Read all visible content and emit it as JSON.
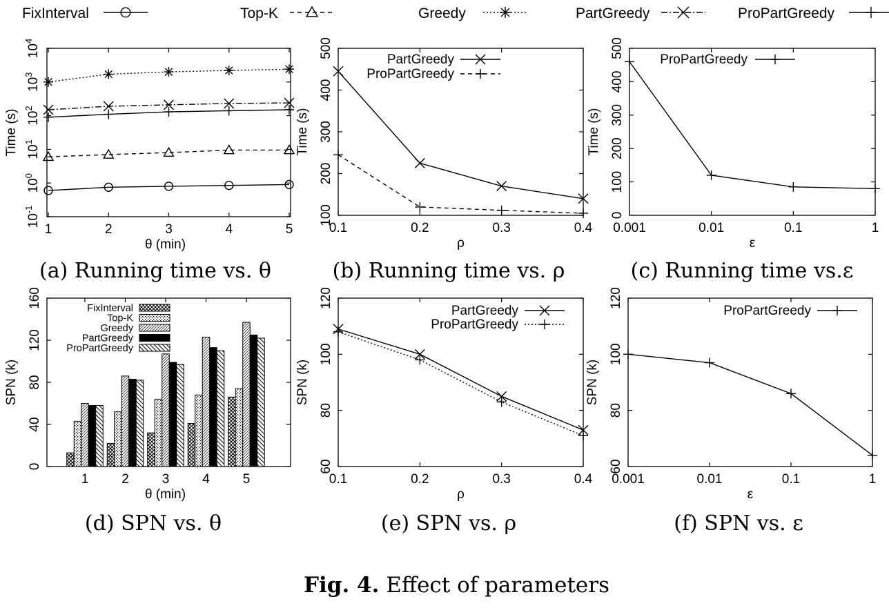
{
  "figure": {
    "caption_label": "Fig. 4.",
    "caption_text": "Effect of parameters"
  },
  "top_legend": [
    {
      "name": "FixInterval",
      "marker": "circle",
      "dash": "solid"
    },
    {
      "name": "Top-K",
      "marker": "triangle",
      "dash": "dashed"
    },
    {
      "name": "Greedy",
      "marker": "asterisk",
      "dash": "dotted"
    },
    {
      "name": "PartGreedy",
      "marker": "x",
      "dash": "dashdot"
    },
    {
      "name": "ProPartGreedy",
      "marker": "plus",
      "dash": "solid"
    }
  ],
  "chart_data": [
    {
      "id": "a",
      "type": "line",
      "caption": "(a) Running time vs. θ",
      "xlabel": "θ (min)",
      "ylabel": "Time (s)",
      "yscale": "log",
      "x": [
        1,
        2,
        3,
        4,
        5
      ],
      "xticks": [
        "1",
        "2",
        "3",
        "4",
        "5"
      ],
      "ylim": [
        0.1,
        10000
      ],
      "yticks": [
        {
          "base": "10",
          "exp": "-1",
          "v": 0.1
        },
        {
          "base": "10",
          "exp": "0",
          "v": 1
        },
        {
          "base": "10",
          "exp": "1",
          "v": 10
        },
        {
          "base": "10",
          "exp": "2",
          "v": 100
        },
        {
          "base": "10",
          "exp": "3",
          "v": 1000
        },
        {
          "base": "10",
          "exp": "4",
          "v": 10000
        }
      ],
      "series": [
        {
          "name": "FixInterval",
          "marker": "circle",
          "dash": "solid",
          "values": [
            0.6,
            0.75,
            0.8,
            0.85,
            0.9
          ]
        },
        {
          "name": "Top-K",
          "marker": "triangle",
          "dash": "dashed",
          "values": [
            6,
            7,
            8,
            9.5,
            9.5
          ]
        },
        {
          "name": "Greedy",
          "marker": "asterisk",
          "dash": "dotted",
          "values": [
            1000,
            1700,
            2000,
            2200,
            2400
          ]
        },
        {
          "name": "PartGreedy",
          "marker": "x",
          "dash": "dashdot",
          "values": [
            150,
            190,
            210,
            230,
            240
          ]
        },
        {
          "name": "ProPartGreedy",
          "marker": "plus",
          "dash": "solid",
          "values": [
            90,
            110,
            130,
            140,
            150
          ]
        }
      ]
    },
    {
      "id": "b",
      "type": "line",
      "caption": "(b) Running time vs. ρ",
      "xlabel": "ρ",
      "ylabel": "Time (s)",
      "yscale": "linear",
      "x": [
        0.1,
        0.2,
        0.3,
        0.4
      ],
      "xticks": [
        "0.1",
        "0.2",
        "0.3",
        "0.4"
      ],
      "ylim": [
        100,
        500
      ],
      "yticks": [
        "100",
        "200",
        "300",
        "400",
        "500"
      ],
      "legend": "top-left",
      "series": [
        {
          "name": "PartGreedy",
          "marker": "x",
          "dash": "solid",
          "values": [
            445,
            225,
            170,
            140
          ]
        },
        {
          "name": "ProPartGreedy",
          "marker": "plus",
          "dash": "dashed",
          "values": [
            245,
            120,
            112,
            105
          ]
        }
      ]
    },
    {
      "id": "c",
      "type": "line",
      "caption": "(c) Running time vs.ε",
      "xlabel": "ε",
      "ylabel": "Time (s)",
      "yscale": "linear",
      "x": [
        "0.001",
        "0.01",
        "0.1",
        "1"
      ],
      "xticks": [
        "0.001",
        "0.01",
        "0.1",
        "1"
      ],
      "ylim": [
        0,
        500
      ],
      "yticks": [
        "0",
        "100",
        "200",
        "300",
        "400",
        "500"
      ],
      "legend": "top-left",
      "series": [
        {
          "name": "ProPartGreedy",
          "marker": "plus",
          "dash": "solid",
          "values": [
            460,
            120,
            85,
            80
          ]
        }
      ]
    },
    {
      "id": "d",
      "type": "bar",
      "caption": "(d) SPN vs. θ",
      "xlabel": "θ (min)",
      "ylabel": "SPN (k)",
      "categories": [
        "1",
        "2",
        "3",
        "4",
        "5"
      ],
      "ylim": [
        0,
        160
      ],
      "yticks": [
        "0",
        "40",
        "80",
        "120",
        "160"
      ],
      "legend": "top-left",
      "series": [
        {
          "name": "FixInterval",
          "pattern": "crosshatch",
          "values": [
            13,
            22,
            32,
            41,
            66
          ]
        },
        {
          "name": "Top-K",
          "pattern": "dots",
          "values": [
            43,
            52,
            64,
            68,
            74
          ]
        },
        {
          "name": "Greedy",
          "pattern": "diagonal",
          "values": [
            60,
            86,
            107,
            123,
            137
          ]
        },
        {
          "name": "PartGreedy",
          "pattern": "solid",
          "values": [
            58,
            83,
            99,
            113,
            125
          ]
        },
        {
          "name": "ProPartGreedy",
          "pattern": "backdiagonal",
          "values": [
            58,
            82,
            97,
            110,
            122
          ]
        }
      ]
    },
    {
      "id": "e",
      "type": "line",
      "caption": "(e) SPN vs. ρ",
      "xlabel": "ρ",
      "ylabel": "SPN (k)",
      "yscale": "linear",
      "x": [
        0.1,
        0.2,
        0.3,
        0.4
      ],
      "xticks": [
        "0.1",
        "0.2",
        "0.3",
        "0.4"
      ],
      "ylim": [
        60,
        120
      ],
      "yticks": [
        "60",
        "80",
        "100",
        "120"
      ],
      "legend": "top-right",
      "series": [
        {
          "name": "PartGreedy",
          "marker": "x",
          "dash": "solid",
          "values": [
            109,
            100,
            85,
            73
          ]
        },
        {
          "name": "ProPartGreedy",
          "marker": "plus",
          "dash": "dotted",
          "values": [
            108,
            98,
            83,
            71
          ]
        }
      ]
    },
    {
      "id": "f",
      "type": "line",
      "caption": "(f) SPN vs. ε",
      "xlabel": "ε",
      "ylabel": "SPN (k)",
      "yscale": "linear",
      "x": [
        "0.001",
        "0.01",
        "0.1",
        "1"
      ],
      "xticks": [
        "0.001",
        "0.01",
        "0.1",
        "1"
      ],
      "ylim": [
        60,
        120
      ],
      "yticks": [
        "60",
        "80",
        "100",
        "120"
      ],
      "legend": "top-right",
      "series": [
        {
          "name": "ProPartGreedy",
          "marker": "plus",
          "dash": "solid",
          "values": [
            100,
            97,
            86,
            64
          ]
        }
      ]
    }
  ]
}
